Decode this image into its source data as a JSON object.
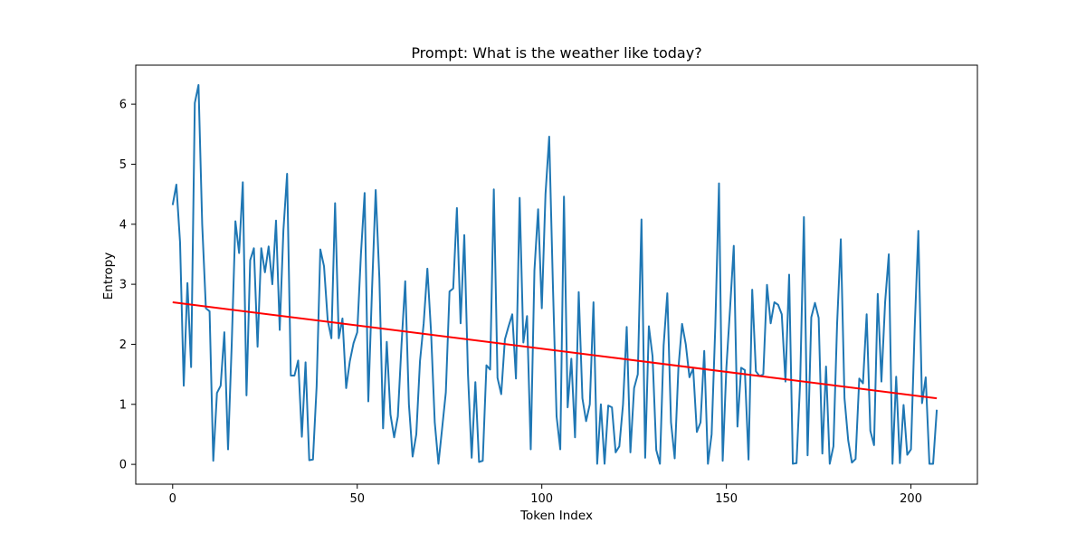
{
  "chart_data": {
    "type": "line",
    "title": "Prompt: What is the weather like today?",
    "xlabel": "Token Index",
    "ylabel": "Entropy",
    "xlim": [
      -10,
      218
    ],
    "ylim": [
      -0.33,
      6.65
    ],
    "xticks": [
      0,
      50,
      100,
      150,
      200
    ],
    "yticks": [
      0,
      1,
      2,
      3,
      4,
      5,
      6
    ],
    "grid": false,
    "colors": {
      "entropy": "#1f77b4",
      "trend": "#ff0000"
    },
    "series": [
      {
        "kind": "entropy",
        "values": [
          4.32,
          4.66,
          3.7,
          1.31,
          3.02,
          1.62,
          6.02,
          6.32,
          4.0,
          2.6,
          2.55,
          0.06,
          1.19,
          1.31,
          2.2,
          0.25,
          2.0,
          4.05,
          3.52,
          4.7,
          1.15,
          3.4,
          3.6,
          1.96,
          3.6,
          3.2,
          3.63,
          3.0,
          4.06,
          2.24,
          3.9,
          4.84,
          1.48,
          1.48,
          1.73,
          0.46,
          1.7,
          0.07,
          0.08,
          1.3,
          3.58,
          3.3,
          2.4,
          2.1,
          4.35,
          2.1,
          2.43,
          1.27,
          1.72,
          2.02,
          2.2,
          3.5,
          4.52,
          1.05,
          2.9,
          4.57,
          3.1,
          0.6,
          2.04,
          0.83,
          0.45,
          0.8,
          2.0,
          3.05,
          1.0,
          0.13,
          0.5,
          1.72,
          2.35,
          3.26,
          2.2,
          0.7,
          0.01,
          0.6,
          1.2,
          2.88,
          2.93,
          4.27,
          2.35,
          3.82,
          1.5,
          0.11,
          1.37,
          0.04,
          0.06,
          1.65,
          1.58,
          4.58,
          1.44,
          1.17,
          2.08,
          2.3,
          2.5,
          1.43,
          4.44,
          2.03,
          2.47,
          0.25,
          3.23,
          4.25,
          2.6,
          4.5,
          5.46,
          3.0,
          0.8,
          0.25,
          4.46,
          0.95,
          1.76,
          0.45,
          2.87,
          1.1,
          0.72,
          1.0,
          2.7,
          0.01,
          1.0,
          0.01,
          0.98,
          0.95,
          0.2,
          0.3,
          1.0,
          2.29,
          0.2,
          1.27,
          1.5,
          4.08,
          0.11,
          2.3,
          1.8,
          0.24,
          0.01,
          1.98,
          2.85,
          0.7,
          0.1,
          1.6,
          2.34,
          2.0,
          1.45,
          1.6,
          0.54,
          0.7,
          1.89,
          0.01,
          0.5,
          2.3,
          4.68,
          0.06,
          1.61,
          2.6,
          3.64,
          0.63,
          1.61,
          1.57,
          0.08,
          2.91,
          1.55,
          1.47,
          1.5,
          2.99,
          2.35,
          2.7,
          2.66,
          2.5,
          1.38,
          3.16,
          0.01,
          0.02,
          1.4,
          4.12,
          0.15,
          2.45,
          2.69,
          2.44,
          0.18,
          1.63,
          0.01,
          0.3,
          2.35,
          3.75,
          1.1,
          0.4,
          0.03,
          0.09,
          1.43,
          1.35,
          2.5,
          0.56,
          0.32,
          2.84,
          1.38,
          2.7,
          3.5,
          0.01,
          1.46,
          0.02,
          0.99,
          0.16,
          0.25,
          2.25,
          3.89,
          1.02,
          1.45,
          0.01,
          0.01,
          0.91
        ]
      },
      {
        "kind": "trend",
        "x": [
          0,
          207
        ],
        "values": [
          2.7,
          1.1
        ]
      }
    ]
  }
}
